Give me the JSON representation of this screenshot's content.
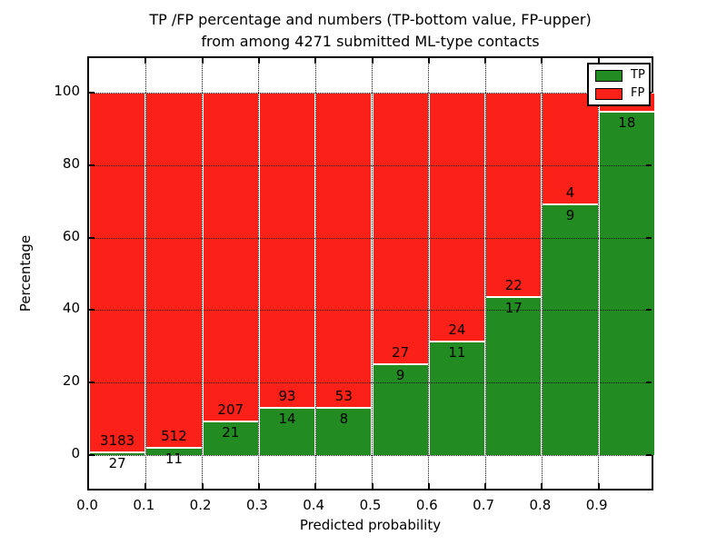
{
  "title": {
    "line1": "TP /FP percentage and numbers (TP-bottom value, FP-upper)",
    "line2": "from among 4271 submitted ML-type contacts"
  },
  "colors": {
    "tp_green": "#228B22",
    "fp_red": "#FB2018",
    "grid": "#1a1a1a",
    "background": "#ffffff",
    "text": "#000000"
  },
  "chart_data": {
    "type": "bar",
    "subtype": "stacked-percentage-histogram",
    "title": "TP /FP percentage and numbers (TP-bottom value, FP-upper)\nfrom among 4271 submitted ML-type contacts",
    "xlabel": "Predicted probability",
    "ylabel": "Percentage",
    "xlim": [
      0.0,
      1.0
    ],
    "ylim": [
      -11,
      110
    ],
    "grid": true,
    "grid_style": "dotted",
    "bin_width": 0.1,
    "categories": [
      0.0,
      0.1,
      0.2,
      0.3,
      0.4,
      0.5,
      0.6,
      0.7,
      0.8,
      0.9
    ],
    "xtick_labels": [
      "0.0",
      "0.1",
      "0.2",
      "0.3",
      "0.4",
      "0.5",
      "0.6",
      "0.7",
      "0.8",
      "0.9"
    ],
    "yticks": [
      0,
      20,
      40,
      60,
      80,
      100
    ],
    "series": [
      {
        "name": "TP",
        "color": "#228B22",
        "values": [
          0.84,
          2.1,
          9.21,
          13.08,
          13.11,
          25.0,
          31.43,
          43.59,
          69.23,
          94.74
        ]
      },
      {
        "name": "FP",
        "color": "#FB2018",
        "values": [
          99.16,
          97.9,
          90.79,
          86.92,
          86.89,
          75.0,
          68.57,
          56.41,
          30.77,
          5.26
        ]
      }
    ],
    "tp_count_labels": [
      "27",
      "11",
      "21",
      "14",
      "8",
      "9",
      "11",
      "17",
      "9",
      "18"
    ],
    "fp_count_labels": [
      "3183",
      "512",
      "207",
      "93",
      "53",
      "27",
      "24",
      "22",
      "4",
      null
    ],
    "legend": {
      "position": "upper right",
      "entries": [
        {
          "label": "TP",
          "color": "#228B22"
        },
        {
          "label": "FP",
          "color": "#FB2018"
        }
      ]
    }
  }
}
